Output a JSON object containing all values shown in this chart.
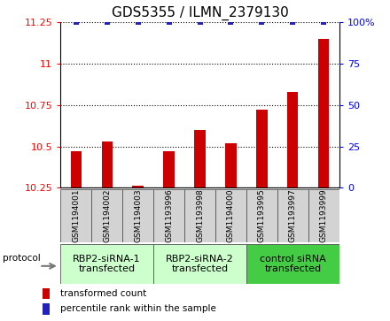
{
  "title": "GDS5355 / ILMN_2379130",
  "samples": [
    "GSM1194001",
    "GSM1194002",
    "GSM1194003",
    "GSM1193996",
    "GSM1193998",
    "GSM1194000",
    "GSM1193995",
    "GSM1193997",
    "GSM1193999"
  ],
  "bar_values": [
    10.47,
    10.53,
    10.265,
    10.47,
    10.6,
    10.52,
    10.72,
    10.83,
    11.15
  ],
  "percentile_values": [
    100,
    100,
    100,
    100,
    100,
    100,
    100,
    100,
    100
  ],
  "ylim_left": [
    10.25,
    11.25
  ],
  "ylim_right": [
    0,
    100
  ],
  "yticks_left": [
    10.25,
    10.5,
    10.75,
    11.0,
    11.25
  ],
  "ytick_labels_left": [
    "10.25",
    "10.5",
    "10.75",
    "11",
    "11.25"
  ],
  "yticks_right": [
    0,
    25,
    50,
    75,
    100
  ],
  "ytick_labels_right": [
    "0",
    "25",
    "50",
    "75",
    "100%"
  ],
  "bar_color": "#cc0000",
  "dot_color": "#2222bb",
  "groups": [
    {
      "label": "RBP2-siRNA-1\ntransfected",
      "indices": [
        0,
        1,
        2
      ],
      "color": "#ccffcc"
    },
    {
      "label": "RBP2-siRNA-2\ntransfected",
      "indices": [
        3,
        4,
        5
      ],
      "color": "#ccffcc"
    },
    {
      "label": "control siRNA\ntransfected",
      "indices": [
        6,
        7,
        8
      ],
      "color": "#44cc44"
    }
  ],
  "protocol_label": "protocol",
  "legend_bar_label": "transformed count",
  "legend_dot_label": "percentile rank within the sample",
  "title_fontsize": 11,
  "tick_fontsize": 8,
  "sample_fontsize": 6.5,
  "group_fontsize": 8
}
